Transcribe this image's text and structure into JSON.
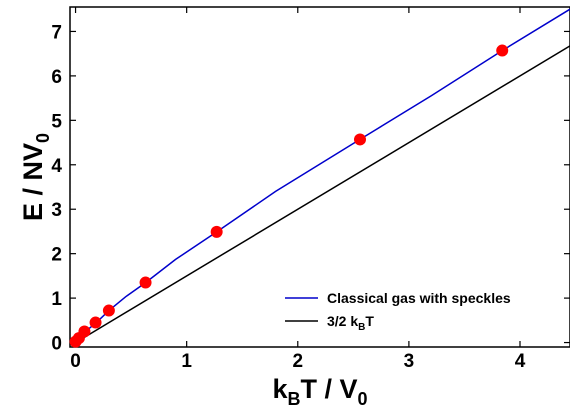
{
  "chart_data": {
    "type": "line",
    "xlabel": {
      "main": "k",
      "sub": "B",
      "rest": "T / V",
      "sub2": "0"
    },
    "ylabel": {
      "main": "E / NV",
      "sub": "0"
    },
    "xlim": [
      -0.05,
      4.45
    ],
    "ylim": [
      -0.1,
      7.55
    ],
    "xticks": [
      0,
      1,
      2,
      3,
      4
    ],
    "yticks": [
      0,
      1,
      2,
      3,
      4,
      5,
      6,
      7
    ],
    "legend_position": "bottom-right",
    "series": [
      {
        "name": "Classical gas with speckles",
        "kind": "line",
        "color": "#0000cc",
        "x": [
          0.0,
          0.02,
          0.05,
          0.1,
          0.2,
          0.3,
          0.45,
          0.63,
          0.9,
          1.27,
          1.8,
          2.56,
          3.2,
          3.84,
          4.45
        ],
        "y": [
          0.0,
          0.08,
          0.16,
          0.27,
          0.48,
          0.72,
          1.03,
          1.35,
          1.87,
          2.49,
          3.4,
          4.57,
          5.55,
          6.57,
          7.5
        ]
      },
      {
        "name": "3/2 k_BT",
        "name_parts": {
          "main": "3/2 k",
          "sub": "B",
          "rest": "T"
        },
        "kind": "line",
        "color": "#000000",
        "x": [
          0.0,
          4.45
        ],
        "y": [
          0.0,
          6.675
        ]
      },
      {
        "name": "",
        "kind": "scatter",
        "color": "#ff0000",
        "x": [
          0.0,
          0.03,
          0.08,
          0.18,
          0.3,
          0.63,
          1.27,
          2.56,
          3.84
        ],
        "y": [
          0.02,
          0.1,
          0.25,
          0.45,
          0.72,
          1.35,
          2.49,
          4.57,
          6.57
        ]
      }
    ]
  }
}
